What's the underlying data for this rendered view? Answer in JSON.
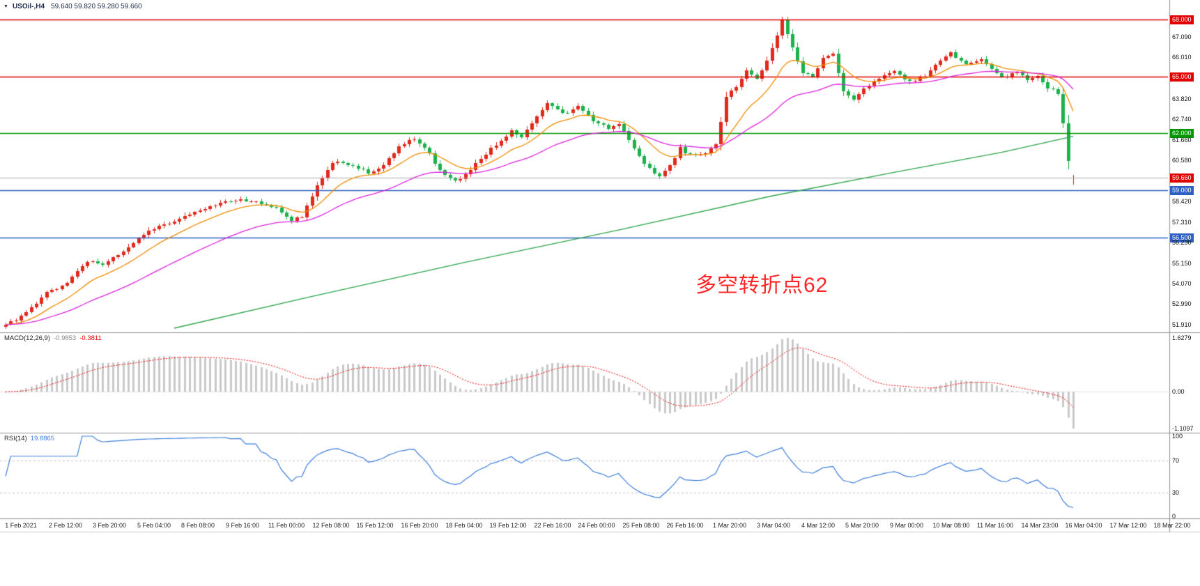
{
  "titlebar": {
    "dropdown_icon": "▼",
    "symbol_period": "USOil-,H4",
    "quotes": "59.640 59.820 59.280 59.660"
  },
  "chart_data": {
    "type": "candlestick",
    "symbol": "USOil",
    "timeframe": "H4",
    "ohlc_quote": {
      "open": 59.64,
      "high": 59.82,
      "low": 59.28,
      "close": 59.66
    },
    "price_axis": {
      "min": 51.5,
      "max": 68.38,
      "labels": [
        {
          "text": "68.000",
          "price": 68.0,
          "tag": "red"
        },
        {
          "text": "67.090",
          "price": 67.09
        },
        {
          "text": "66.010",
          "price": 66.01
        },
        {
          "text": "65.000",
          "price": 65.0,
          "tag": "red"
        },
        {
          "text": "63.820",
          "price": 63.82
        },
        {
          "text": "62.740",
          "price": 62.74
        },
        {
          "text": "62.000",
          "price": 62.0,
          "tag": "green"
        },
        {
          "text": "61.660",
          "price": 61.66
        },
        {
          "text": "60.580",
          "price": 60.58
        },
        {
          "text": "59.660",
          "price": 59.66,
          "tag": "red",
          "current": true
        },
        {
          "text": "59.000",
          "price": 59.0,
          "tag": "blue"
        },
        {
          "text": "58.420",
          "price": 58.42
        },
        {
          "text": "57.310",
          "price": 57.31
        },
        {
          "text": "56.500",
          "price": 56.5,
          "tag": "blue"
        },
        {
          "text": "56.230",
          "price": 56.23
        },
        {
          "text": "55.150",
          "price": 55.15
        },
        {
          "text": "54.070",
          "price": 54.07
        },
        {
          "text": "52.990",
          "price": 52.99
        },
        {
          "text": "51.910",
          "price": 51.91
        }
      ]
    },
    "levels": [
      {
        "price": 68.0,
        "color": "#e00000",
        "label": "68.000"
      },
      {
        "price": 65.0,
        "color": "#e00000",
        "label": "65.000"
      },
      {
        "price": 62.0,
        "color": "#009600",
        "label": "62.000"
      },
      {
        "price": 59.0,
        "color": "#2e5fc4",
        "label": "59.000"
      },
      {
        "price": 56.5,
        "color": "#2e5fc4",
        "label": "56.500"
      }
    ],
    "current_price": {
      "value": 59.66,
      "label": "59.660"
    },
    "candles": {
      "count": 210,
      "up_color": "#e02a1c",
      "down_color": "#1cb24b",
      "path": [
        [
          0,
          51.95
        ],
        [
          2,
          52.2
        ],
        [
          4,
          52.55
        ],
        [
          8,
          53.6
        ],
        [
          12,
          54.1
        ],
        [
          16,
          55.25
        ],
        [
          19,
          55.05
        ],
        [
          22,
          55.6
        ],
        [
          26,
          56.5
        ],
        [
          30,
          57.1
        ],
        [
          34,
          57.5
        ],
        [
          38,
          58.0
        ],
        [
          42,
          58.3
        ],
        [
          46,
          58.55
        ],
        [
          50,
          58.3
        ],
        [
          53,
          58.05
        ],
        [
          56,
          57.35
        ],
        [
          58,
          57.6
        ],
        [
          61,
          59.3
        ],
        [
          63,
          60.15
        ],
        [
          65,
          60.55
        ],
        [
          68,
          60.3
        ],
        [
          71,
          59.9
        ],
        [
          74,
          60.3
        ],
        [
          77,
          61.3
        ],
        [
          80,
          61.75
        ],
        [
          82,
          61.3
        ],
        [
          85,
          60.0
        ],
        [
          88,
          59.45
        ],
        [
          90,
          59.8
        ],
        [
          93,
          60.7
        ],
        [
          96,
          61.4
        ],
        [
          99,
          62.1
        ],
        [
          101,
          61.85
        ],
        [
          104,
          62.9
        ],
        [
          106,
          63.55
        ],
        [
          109,
          63.05
        ],
        [
          112,
          63.4
        ],
        [
          115,
          62.7
        ],
        [
          118,
          62.3
        ],
        [
          120,
          62.5
        ],
        [
          122,
          61.6
        ],
        [
          125,
          60.35
        ],
        [
          128,
          59.75
        ],
        [
          130,
          60.3
        ],
        [
          132,
          61.2
        ],
        [
          134,
          60.85
        ],
        [
          137,
          61.0
        ],
        [
          139,
          61.45
        ],
        [
          141,
          63.9
        ],
        [
          143,
          64.5
        ],
        [
          145,
          65.3
        ],
        [
          147,
          64.9
        ],
        [
          149,
          65.9
        ],
        [
          151,
          67.2
        ],
        [
          152,
          67.9
        ],
        [
          154,
          66.5
        ],
        [
          156,
          65.2
        ],
        [
          158,
          64.95
        ],
        [
          160,
          65.9
        ],
        [
          162,
          66.2
        ],
        [
          164,
          64.2
        ],
        [
          166,
          63.7
        ],
        [
          168,
          64.3
        ],
        [
          171,
          64.9
        ],
        [
          174,
          65.3
        ],
        [
          177,
          64.7
        ],
        [
          180,
          65.0
        ],
        [
          183,
          65.9
        ],
        [
          185,
          66.25
        ],
        [
          188,
          65.6
        ],
        [
          191,
          65.95
        ],
        [
          193,
          65.35
        ],
        [
          196,
          64.95
        ],
        [
          198,
          65.25
        ],
        [
          200,
          64.75
        ],
        [
          202,
          65.0
        ],
        [
          204,
          64.4
        ],
        [
          206,
          64.15
        ],
        [
          207,
          62.6
        ],
        [
          208,
          60.6
        ],
        [
          209,
          59.66
        ]
      ]
    },
    "moving_averages": {
      "fast": {
        "period": 12,
        "color": "#f08c00"
      },
      "medium": {
        "period": 34,
        "color": "#dd22dd"
      },
      "slow": {
        "color": "#2ca44a",
        "path": [
          [
            33,
            51.72
          ],
          [
            60,
            53.4
          ],
          [
            90,
            55.2
          ],
          [
            120,
            56.9
          ],
          [
            150,
            58.7
          ],
          [
            175,
            60.0
          ],
          [
            195,
            61.0
          ],
          [
            209,
            61.85
          ]
        ]
      }
    },
    "annotation": {
      "text": "多空转折点62",
      "color": "#ff2626"
    },
    "time_axis": {
      "labels": [
        "1 Feb 2021",
        "2 Feb 12:00",
        "3 Feb 20:00",
        "5 Feb 04:00",
        "8 Feb 08:00",
        "9 Feb 16:00",
        "11 Feb 00:00",
        "12 Feb 08:00",
        "15 Feb 12:00",
        "16 Feb 20:00",
        "18 Feb 04:00",
        "19 Feb 12:00",
        "22 Feb 16:00",
        "24 Feb 00:00",
        "25 Feb 08:00",
        "26 Feb 16:00",
        "1 Mar 20:00",
        "3 Mar 04:00",
        "4 Mar 12:00",
        "5 Mar 20:00",
        "9 Mar 00:00",
        "10 Mar 08:00",
        "11 Mar 16:00",
        "14 Mar 23:00",
        "16 Mar 04:00",
        "17 Mar 12:00",
        "18 Mar 22:00"
      ]
    },
    "macd": {
      "name": "MACD(12,26,9)",
      "value_main": "-0.9853",
      "value_signal": "-0.3811",
      "bar_color": "#c9c9c9",
      "signal_color": "#f00000",
      "scale": [
        {
          "text": "1.6279",
          "v": 1.6279
        },
        {
          "text": "0.00",
          "v": 0
        },
        {
          "text": "-1.1097",
          "v": -1.1097
        }
      ]
    },
    "rsi": {
      "name": "RSI(14)",
      "value": "19.8865",
      "line_color": "#3d7edb",
      "levels": [
        70,
        30
      ],
      "scale": [
        {
          "text": "100",
          "v": 100
        },
        {
          "text": "70",
          "v": 70
        },
        {
          "text": "30",
          "v": 30
        },
        {
          "text": "0",
          "v": 0
        }
      ]
    }
  }
}
